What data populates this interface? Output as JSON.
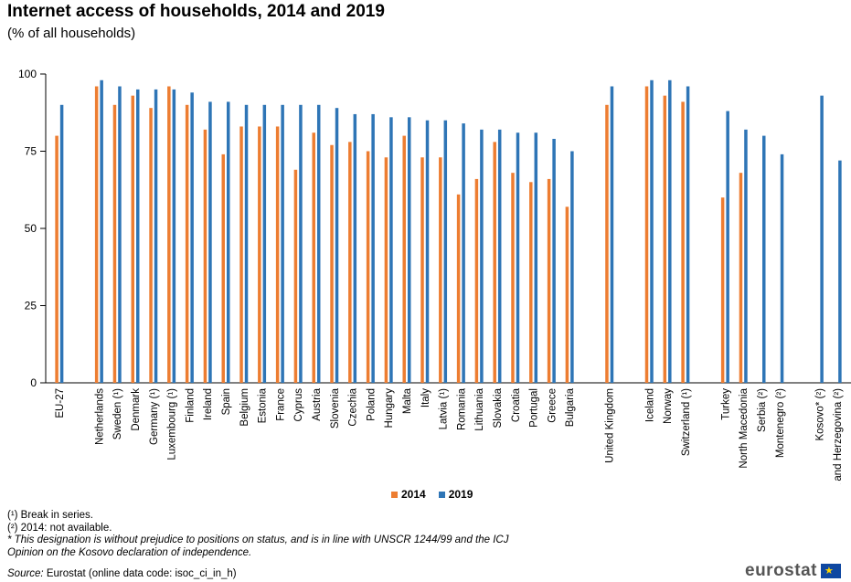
{
  "chart_data": {
    "type": "bar",
    "title": "Internet access of households, 2014 and 2019",
    "subtitle": "(% of all households)",
    "ylim": [
      0,
      100
    ],
    "yticks": [
      "0",
      "25",
      "50",
      "75",
      "100"
    ],
    "legend_position": "bottom-center",
    "grid": false,
    "categories": [
      "EU-27",
      "Netherlands",
      "Sweden (¹)",
      "Denmark",
      "Germany (¹)",
      "Luxembourg (¹)",
      "Finland",
      "Ireland",
      "Spain",
      "Belgium",
      "Estonia",
      "France",
      "Cyprus",
      "Austria",
      "Slovenia",
      "Czechia",
      "Poland",
      "Hungary",
      "Malta",
      "Italy",
      "Latvia (¹)",
      "Romania",
      "Lithuania",
      "Slovakia",
      "Croatia",
      "Portugal",
      "Greece",
      "Bulgaria",
      "United Kingdom",
      "Iceland",
      "Norway",
      "Switzerland (¹)",
      "Turkey",
      "North Macedonia",
      "Serbia (²)",
      "Montenegro (²)",
      "Kosovo* (²)",
      "Bosnia and Herzegovina (²)"
    ],
    "groups": [
      1,
      27,
      1,
      3,
      4,
      2
    ],
    "series": [
      {
        "name": "2014",
        "color": "#ed7d31",
        "values": [
          80,
          96,
          90,
          93,
          89,
          96,
          90,
          82,
          74,
          83,
          83,
          83,
          69,
          81,
          77,
          78,
          75,
          73,
          80,
          73,
          73,
          61,
          66,
          78,
          68,
          65,
          66,
          57,
          90,
          96,
          93,
          91,
          60,
          68,
          null,
          null,
          null,
          null
        ]
      },
      {
        "name": "2019",
        "color": "#2e75b6",
        "values": [
          90,
          98,
          96,
          95,
          95,
          95,
          94,
          91,
          91,
          90,
          90,
          90,
          90,
          90,
          89,
          87,
          87,
          86,
          86,
          85,
          85,
          84,
          82,
          82,
          81,
          81,
          79,
          75,
          96,
          98,
          98,
          96,
          88,
          82,
          80,
          74,
          93,
          72
        ]
      }
    ]
  },
  "notes": {
    "note1": "(¹) Break in series.",
    "note2": "(²) 2014: not available.",
    "note3": "* This designation is without prejudice to positions on status, and is in line with UNSCR 1244/99 and the ICJ",
    "note4": "Opinion on the Kosovo declaration of independence."
  },
  "source": {
    "label": "Source:",
    "text": " Eurostat (online data code: isoc_ci_in_h)"
  },
  "logo": {
    "text": "eurostat",
    "stars": "★"
  }
}
